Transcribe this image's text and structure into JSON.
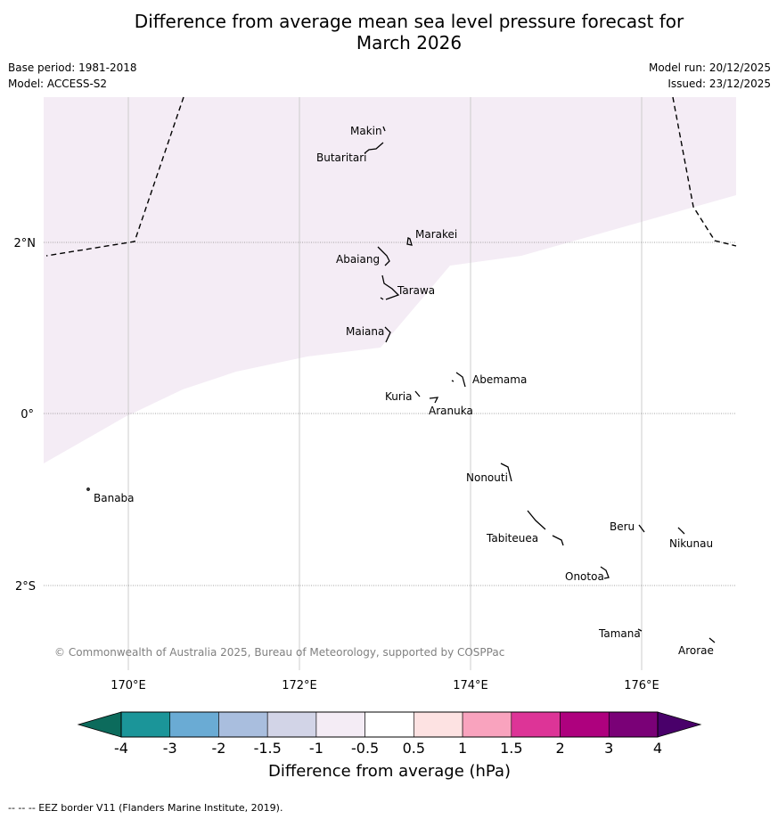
{
  "header": {
    "title_line1": "Difference from average mean sea level pressure forecast for",
    "title_line2": "March 2026",
    "base_period": "Base period: 1981-2018",
    "model": "Model: ACCESS-S2",
    "model_run": "Model run: 20/12/2025",
    "issued": "Issued: 23/12/2025"
  },
  "map": {
    "lon_labels": [
      "170°E",
      "172°E",
      "174°E",
      "176°E"
    ],
    "lat_labels": [
      "2°N",
      "0°",
      "2°S"
    ],
    "copyright": "© Commonwealth of Australia 2025, Bureau of Meteorology, supported by COSPPac",
    "places": [
      "Makin",
      "Butaritari",
      "Marakei",
      "Abaiang",
      "Tarawa",
      "Maiana",
      "Abemama",
      "Kuria",
      "Aranuka",
      "Nonouti",
      "Banaba",
      "Beru",
      "Tabiteuea",
      "Nikunau",
      "Onotoa",
      "Tamana",
      "Arorae"
    ],
    "shaded_category": "-1 to -0.5",
    "shaded_color": "#f4ecf5"
  },
  "legend": {
    "title": "Difference from average (hPa)",
    "ticks": [
      "-4",
      "-3",
      "-2",
      "-1.5",
      "-1",
      "-0.5",
      "0.5",
      "1",
      "1.5",
      "2",
      "3",
      "4"
    ],
    "colors": [
      "#1b9599",
      "#6aabd4",
      "#a9bede",
      "#d2d4e7",
      "#f4ecf5",
      "#ffffff",
      "#fde2e2",
      "#f9a3be",
      "#dd3497",
      "#ae017e",
      "#7a0177"
    ],
    "low_extend_color": "#0c6b5c",
    "high_extend_color": "#49006a"
  },
  "footnote": "--  --  -- EEZ border V11 (Flanders Marine Institute, 2019)."
}
